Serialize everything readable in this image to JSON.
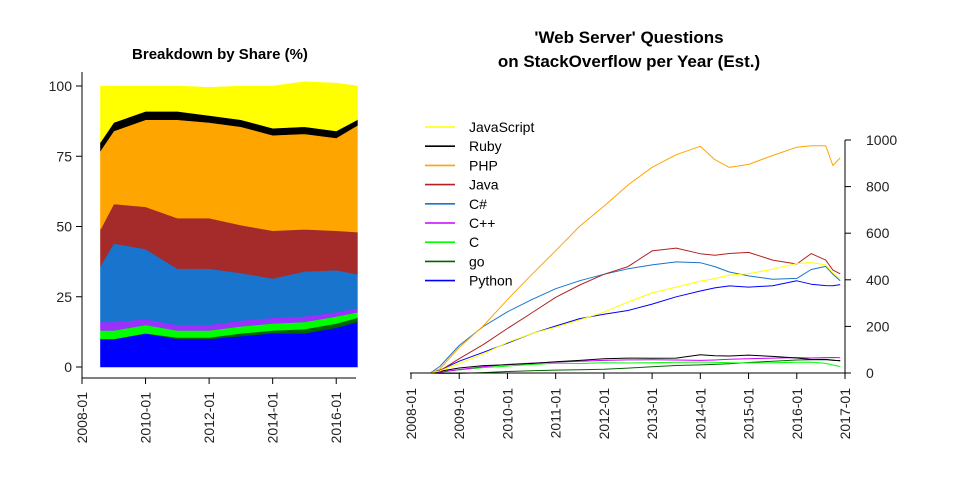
{
  "chart_data": [
    {
      "type": "area",
      "title": "Breakdown by Share (%)",
      "xlabel": "",
      "ylabel": "",
      "ylim": [
        0,
        100
      ],
      "x_ticks": [
        "2008-01",
        "2010-01",
        "2012-01",
        "2014-01",
        "2016-01"
      ],
      "y_ticks": [
        "0",
        "25",
        "50",
        "75",
        "100"
      ],
      "stack_order": [
        "Python",
        "go",
        "C",
        "C++",
        "C#",
        "Java",
        "PHP",
        "Ruby",
        "JavaScript"
      ],
      "x": [
        "2008-08",
        "2009-01",
        "2010-01",
        "2011-01",
        "2012-01",
        "2013-01",
        "2014-01",
        "2015-01",
        "2016-01",
        "2016-09"
      ],
      "series": [
        {
          "name": "Python",
          "color": "#0000ff",
          "values": [
            10,
            10,
            12,
            10,
            10,
            11,
            12,
            12,
            14,
            16
          ]
        },
        {
          "name": "go",
          "color": "#006400",
          "values": [
            0,
            0,
            0,
            0.5,
            0.5,
            1,
            1,
            1.5,
            1.5,
            1.5
          ]
        },
        {
          "name": "C",
          "color": "#00ff00",
          "values": [
            3,
            3,
            3,
            2.5,
            2.5,
            2.5,
            2.5,
            2.5,
            2.5,
            2
          ]
        },
        {
          "name": "C++",
          "color": "#9b30ff",
          "values": [
            3,
            3,
            2,
            2,
            2,
            2,
            2,
            2,
            1.5,
            1.5
          ]
        },
        {
          "name": "C#",
          "color": "#1874cd",
          "values": [
            20,
            28,
            25,
            20,
            20,
            17,
            14,
            16,
            15,
            12
          ]
        },
        {
          "name": "Java",
          "color": "#a52a2a",
          "values": [
            13,
            14,
            15,
            18,
            18,
            17,
            17,
            15,
            14,
            15
          ]
        },
        {
          "name": "PHP",
          "color": "#ffa500",
          "values": [
            28,
            26,
            31,
            35,
            34,
            35,
            34,
            34,
            33,
            38
          ]
        },
        {
          "name": "Ruby",
          "color": "#000000",
          "values": [
            3,
            3,
            3,
            3,
            2.5,
            2.5,
            2.5,
            2.5,
            2.5,
            2
          ]
        },
        {
          "name": "JavaScript",
          "color": "#ffff00",
          "values": [
            20,
            13,
            9,
            9,
            10,
            12,
            15,
            16,
            17,
            12
          ]
        }
      ]
    },
    {
      "type": "line",
      "title": "'Web Server' Questions",
      "subtitle": "on StackOverflow per Year (Est.)",
      "xlabel": "",
      "ylabel": "",
      "ylim": [
        0,
        1000
      ],
      "x_ticks": [
        "2008-01",
        "2009-01",
        "2010-01",
        "2011-01",
        "2012-01",
        "2013-01",
        "2014-01",
        "2015-01",
        "2016-01",
        "2017-01"
      ],
      "y_ticks": [
        "0",
        "200",
        "400",
        "600",
        "800",
        "1000"
      ],
      "x": [
        2008.0,
        2008.4,
        2008.6,
        2009.0,
        2009.5,
        2010.0,
        2010.5,
        2011.0,
        2011.5,
        2012.0,
        2012.5,
        2013.0,
        2013.5,
        2014.0,
        2014.3,
        2014.6,
        2015.0,
        2015.5,
        2016.0,
        2016.3,
        2016.6,
        2016.75,
        2016.9
      ],
      "series": [
        {
          "name": "JavaScript",
          "color": "#ffff00",
          "values": [
            0,
            0,
            10,
            40,
            80,
            130,
            170,
            200,
            230,
            260,
            300,
            340,
            370,
            400,
            410,
            420,
            420,
            440,
            470,
            480,
            470,
            430,
            400
          ]
        },
        {
          "name": "Ruby",
          "color": "#000000",
          "values": [
            0,
            0,
            8,
            20,
            30,
            35,
            42,
            50,
            55,
            60,
            62,
            62,
            65,
            80,
            75,
            72,
            75,
            70,
            65,
            60,
            60,
            55,
            50
          ]
        },
        {
          "name": "PHP",
          "color": "#ffa500",
          "values": [
            0,
            0,
            20,
            110,
            200,
            310,
            420,
            530,
            640,
            720,
            800,
            870,
            930,
            980,
            930,
            890,
            890,
            920,
            960,
            980,
            990,
            900,
            920
          ]
        },
        {
          "name": "Java",
          "color": "#b22222",
          "values": [
            0,
            0,
            10,
            60,
            120,
            190,
            260,
            330,
            380,
            420,
            450,
            520,
            540,
            520,
            510,
            510,
            510,
            480,
            470,
            520,
            490,
            440,
            420
          ]
        },
        {
          "name": "C#",
          "color": "#1874cd",
          "values": [
            0,
            0,
            30,
            120,
            200,
            260,
            310,
            360,
            400,
            430,
            450,
            460,
            470,
            470,
            460,
            440,
            420,
            400,
            400,
            440,
            460,
            430,
            400
          ]
        },
        {
          "name": "C++",
          "color": "#cc00ff",
          "values": [
            0,
            0,
            5,
            15,
            25,
            35,
            42,
            48,
            52,
            55,
            55,
            55,
            55,
            55,
            58,
            60,
            60,
            62,
            65,
            65,
            68,
            68,
            65
          ]
        },
        {
          "name": "C",
          "color": "#00ff00",
          "values": [
            0,
            0,
            5,
            15,
            25,
            30,
            35,
            40,
            40,
            45,
            45,
            45,
            45,
            45,
            45,
            45,
            45,
            45,
            45,
            45,
            40,
            35,
            30
          ]
        },
        {
          "name": "go",
          "color": "#006400",
          "values": [
            0,
            0,
            0,
            0,
            2,
            5,
            8,
            12,
            15,
            18,
            22,
            26,
            30,
            34,
            38,
            42,
            46,
            50,
            54,
            56,
            58,
            56,
            55
          ]
        },
        {
          "name": "Python",
          "color": "#0000ff",
          "values": [
            0,
            0,
            10,
            50,
            90,
            130,
            170,
            200,
            230,
            250,
            270,
            300,
            330,
            350,
            360,
            370,
            370,
            380,
            400,
            380,
            370,
            370,
            380
          ]
        }
      ]
    }
  ]
}
